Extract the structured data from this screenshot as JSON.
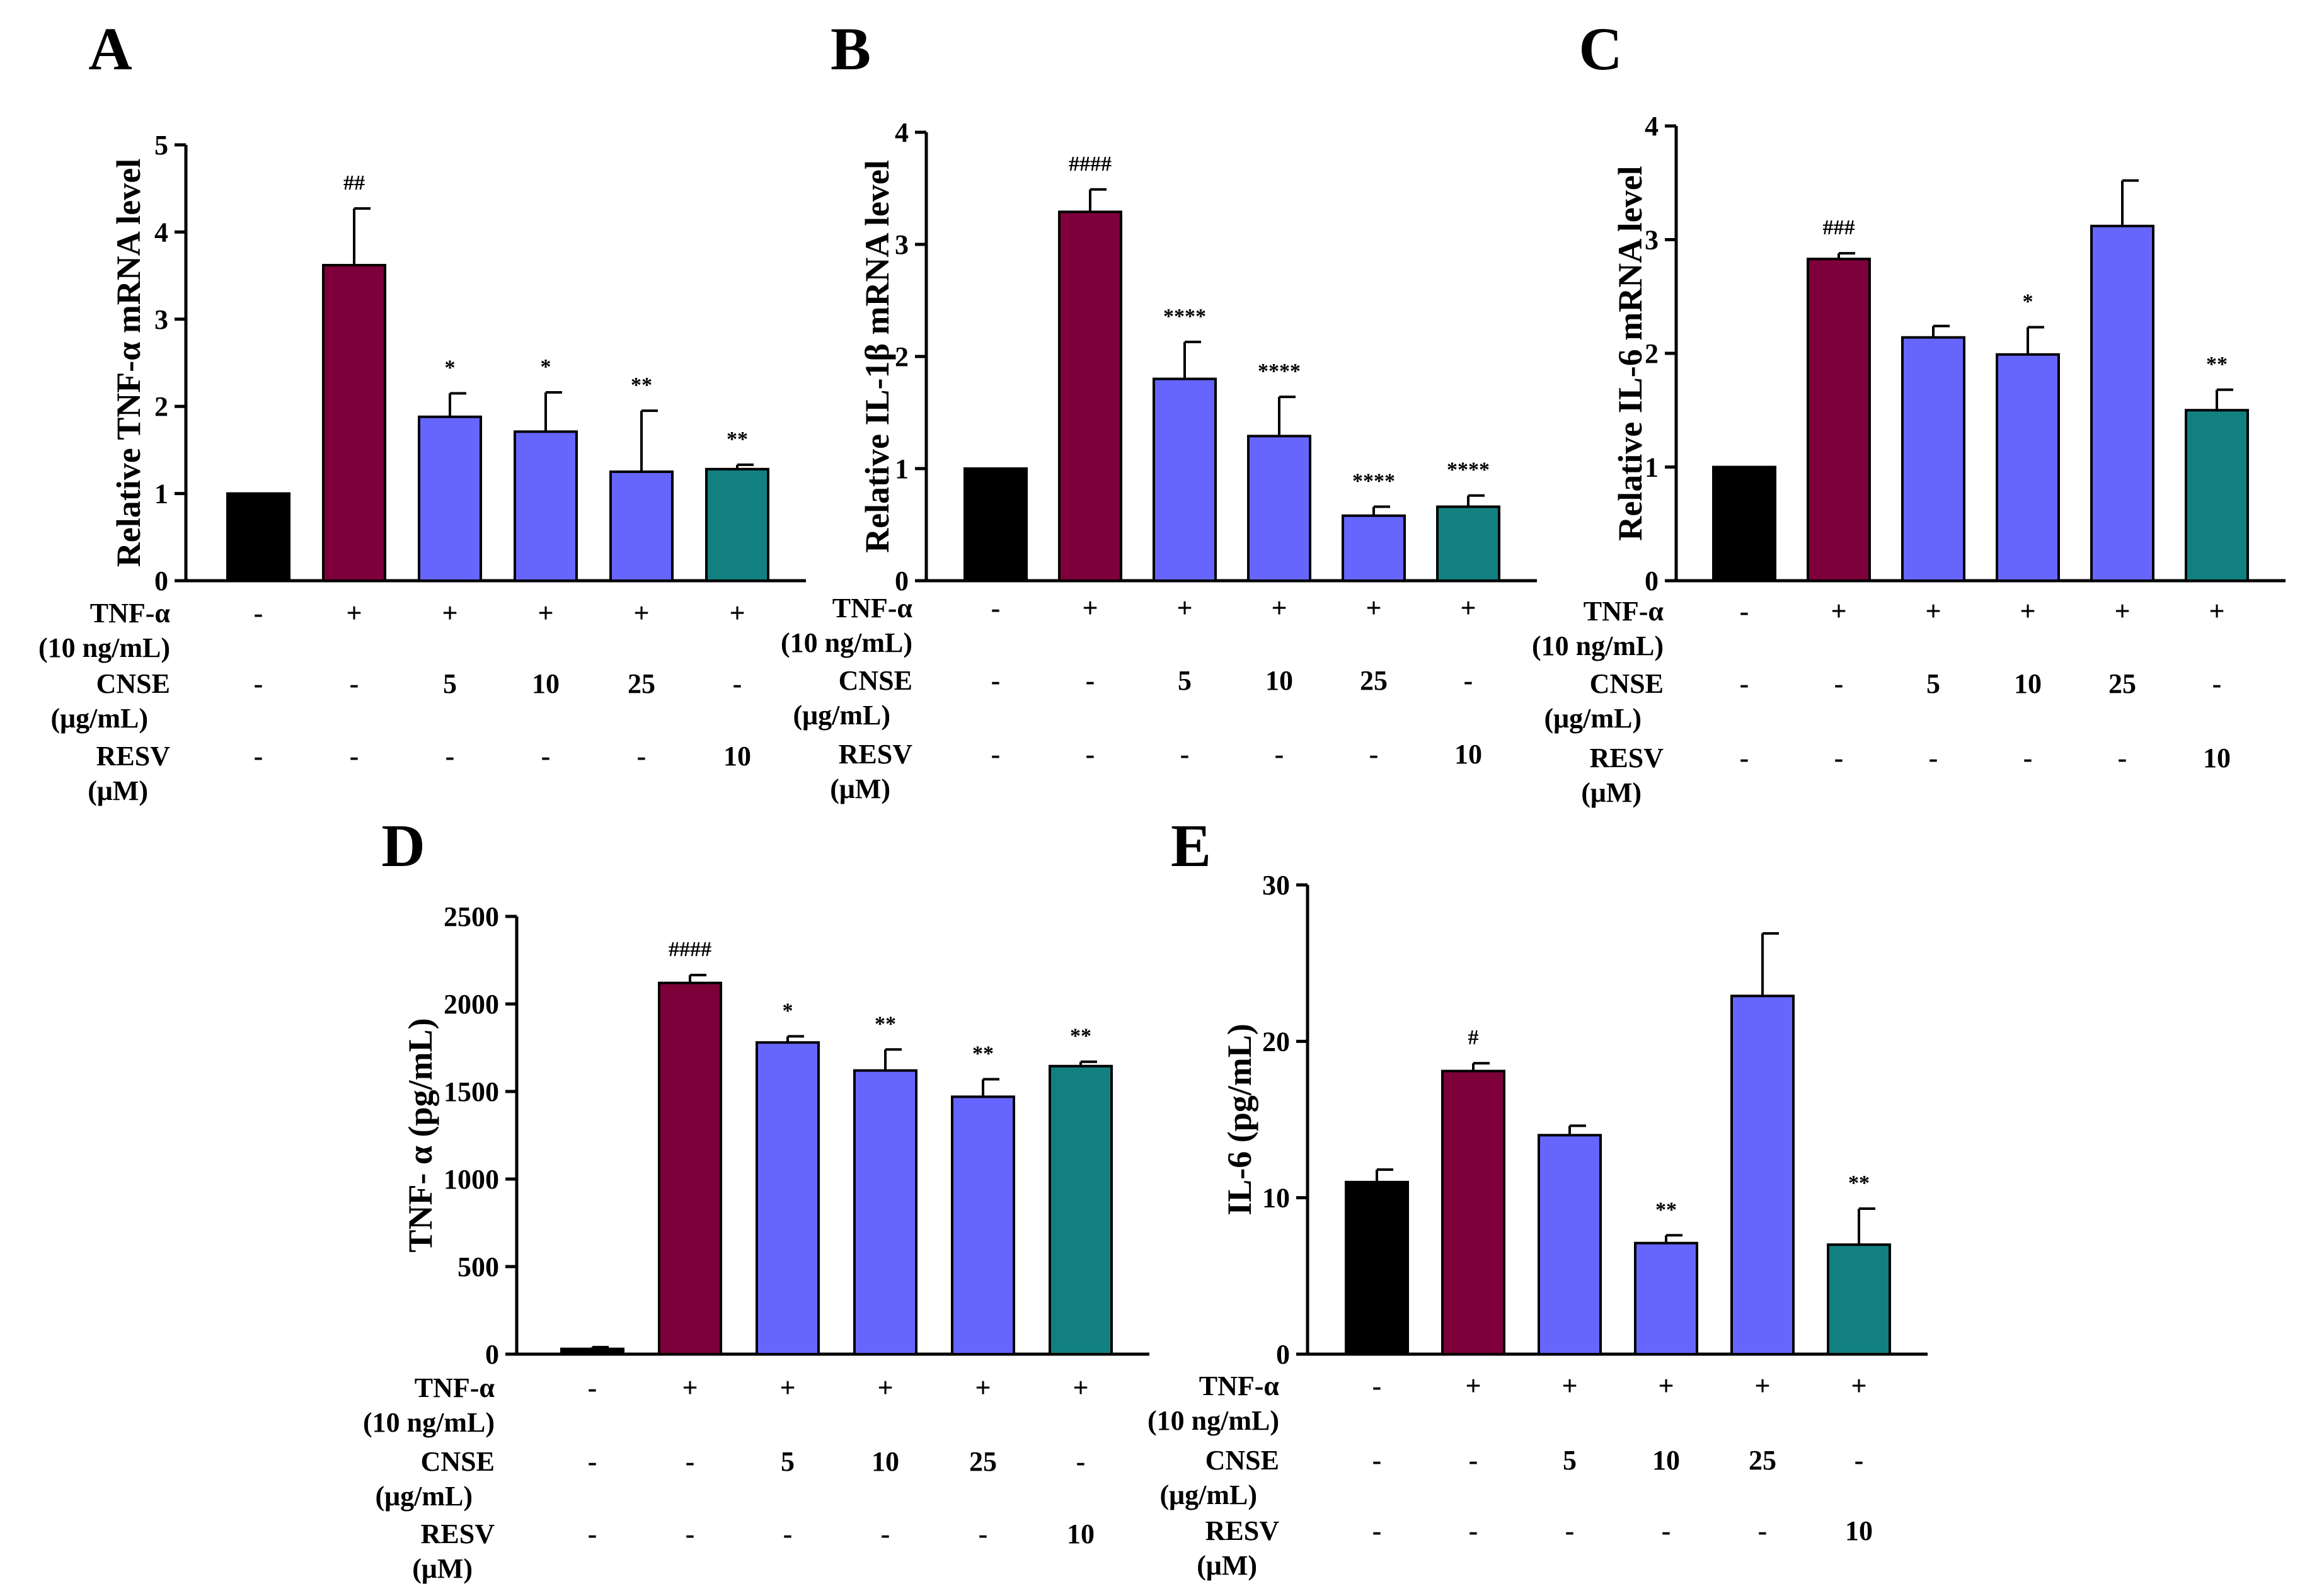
{
  "colors": {
    "control": "#000000",
    "tnf_only": "#7d003a",
    "cnse": "#6666ff",
    "resv": "#128080",
    "axis": "#000000"
  },
  "chart_data": [
    {
      "panel": "A",
      "type": "bar",
      "ylabel": "Relative TNF-α mRNA level",
      "ylim": [
        0,
        5
      ],
      "yticks": [
        "0",
        "1",
        "2",
        "3",
        "4",
        "5"
      ],
      "values": [
        1.0,
        3.62,
        1.88,
        1.71,
        1.25,
        1.28
      ],
      "errors": [
        0,
        0.65,
        0.27,
        0.45,
        0.7,
        0.05
      ],
      "significance": [
        "",
        "##",
        "*",
        "*",
        "**",
        "**"
      ],
      "bar_colors": [
        "control",
        "tnf_only",
        "cnse",
        "cnse",
        "cnse",
        "resv"
      ],
      "conditions": [
        {
          "label": "TNF-α",
          "unit": "(10 ng/mL)",
          "values": [
            "-",
            "+",
            "+",
            "+",
            "+",
            "+"
          ]
        },
        {
          "label": "CNSE",
          "unit": "(μg/mL)",
          "values": [
            "-",
            "-",
            "5",
            "10",
            "25",
            "-"
          ]
        },
        {
          "label": "RESV",
          "unit": "(μM)",
          "values": [
            "-",
            "-",
            "-",
            "-",
            "-",
            "10"
          ]
        }
      ]
    },
    {
      "panel": "B",
      "type": "bar",
      "ylabel": "Relative IL-1β mRNA level",
      "ylim": [
        0,
        4
      ],
      "yticks": [
        "0",
        "1",
        "2",
        "3",
        "4"
      ],
      "values": [
        1.0,
        3.29,
        1.8,
        1.29,
        0.58,
        0.66
      ],
      "errors": [
        0,
        0.2,
        0.33,
        0.35,
        0.08,
        0.1
      ],
      "significance": [
        "",
        "####",
        "****",
        "****",
        "****",
        "****"
      ],
      "bar_colors": [
        "control",
        "tnf_only",
        "cnse",
        "cnse",
        "cnse",
        "resv"
      ],
      "conditions": [
        {
          "label": "TNF-α",
          "unit": "(10 ng/mL)",
          "values": [
            "-",
            "+",
            "+",
            "+",
            "+",
            "+"
          ]
        },
        {
          "label": "CNSE",
          "unit": "(μg/mL)",
          "values": [
            "-",
            "-",
            "5",
            "10",
            "25",
            "-"
          ]
        },
        {
          "label": "RESV",
          "unit": "(μM)",
          "values": [
            "-",
            "-",
            "-",
            "-",
            "-",
            "10"
          ]
        }
      ]
    },
    {
      "panel": "C",
      "type": "bar",
      "ylabel": "Relative IL-6 mRNA level",
      "ylim": [
        0,
        4
      ],
      "yticks": [
        "0",
        "1",
        "2",
        "3",
        "4"
      ],
      "values": [
        1.0,
        2.83,
        2.14,
        1.99,
        3.12,
        1.5
      ],
      "errors": [
        0,
        0.05,
        0.1,
        0.24,
        0.4,
        0.18
      ],
      "significance": [
        "",
        "###",
        "",
        "*",
        "",
        "**"
      ],
      "bar_colors": [
        "control",
        "tnf_only",
        "cnse",
        "cnse",
        "cnse",
        "resv"
      ],
      "conditions": [
        {
          "label": "TNF-α",
          "unit": "(10 ng/mL)",
          "values": [
            "-",
            "+",
            "+",
            "+",
            "+",
            "+"
          ]
        },
        {
          "label": "CNSE",
          "unit": "(μg/mL)",
          "values": [
            "-",
            "-",
            "5",
            "10",
            "25",
            "-"
          ]
        },
        {
          "label": "RESV",
          "unit": "(μM)",
          "values": [
            "-",
            "-",
            "-",
            "-",
            "-",
            "10"
          ]
        }
      ]
    },
    {
      "panel": "D",
      "type": "bar",
      "ylabel": "TNF- α (pg/mL)",
      "ylim": [
        0,
        2500
      ],
      "yticks": [
        "0",
        "500",
        "1000",
        "1500",
        "2000",
        "2500"
      ],
      "values": [
        30,
        2120,
        1780,
        1620,
        1470,
        1645
      ],
      "errors": [
        10,
        45,
        35,
        120,
        100,
        25
      ],
      "significance": [
        "",
        "####",
        "*",
        "**",
        "**",
        "**"
      ],
      "bar_colors": [
        "control",
        "tnf_only",
        "cnse",
        "cnse",
        "cnse",
        "resv"
      ],
      "conditions": [
        {
          "label": "TNF-α",
          "unit": "(10 ng/mL)",
          "values": [
            "-",
            "+",
            "+",
            "+",
            "+",
            "+"
          ]
        },
        {
          "label": "CNSE",
          "unit": "(μg/mL)",
          "values": [
            "-",
            "-",
            "5",
            "10",
            "25",
            "-"
          ]
        },
        {
          "label": "RESV",
          "unit": "(μM)",
          "values": [
            "-",
            "-",
            "-",
            "-",
            "-",
            "10"
          ]
        }
      ]
    },
    {
      "panel": "E",
      "type": "bar",
      "ylabel": "IL-6 (pg/mL)",
      "ylim": [
        0,
        30
      ],
      "yticks": [
        "0",
        "10",
        "20",
        "30"
      ],
      "values": [
        11.0,
        18.1,
        14.0,
        7.1,
        22.9,
        7.0
      ],
      "errors": [
        0.8,
        0.5,
        0.6,
        0.5,
        4.0,
        2.3
      ],
      "significance": [
        "",
        "#",
        "",
        "**",
        "",
        "**"
      ],
      "bar_colors": [
        "control",
        "tnf_only",
        "cnse",
        "cnse",
        "cnse",
        "resv"
      ],
      "conditions": [
        {
          "label": "TNF-α",
          "unit": "(10 ng/mL)",
          "values": [
            "-",
            "+",
            "+",
            "+",
            "+",
            "+"
          ]
        },
        {
          "label": "CNSE",
          "unit": "(μg/mL)",
          "values": [
            "-",
            "-",
            "5",
            "10",
            "25",
            "-"
          ]
        },
        {
          "label": "RESV",
          "unit": "(μM)",
          "values": [
            "-",
            "-",
            "-",
            "-",
            "-",
            "10"
          ]
        }
      ]
    }
  ]
}
